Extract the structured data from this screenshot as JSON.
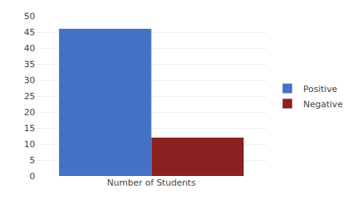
{
  "chart_data": {
    "type": "bar",
    "categories": [
      "Number of Students"
    ],
    "series": [
      {
        "name": "Positive",
        "color": "#4472C4",
        "values": [
          46
        ]
      },
      {
        "name": "Negative",
        "color": "#8B2020",
        "values": [
          12
        ]
      }
    ],
    "ylim": [
      0,
      50
    ],
    "yticks": [
      0,
      5,
      10,
      15,
      20,
      25,
      30,
      35,
      40,
      45,
      50
    ],
    "grid": true,
    "legend": "right"
  }
}
